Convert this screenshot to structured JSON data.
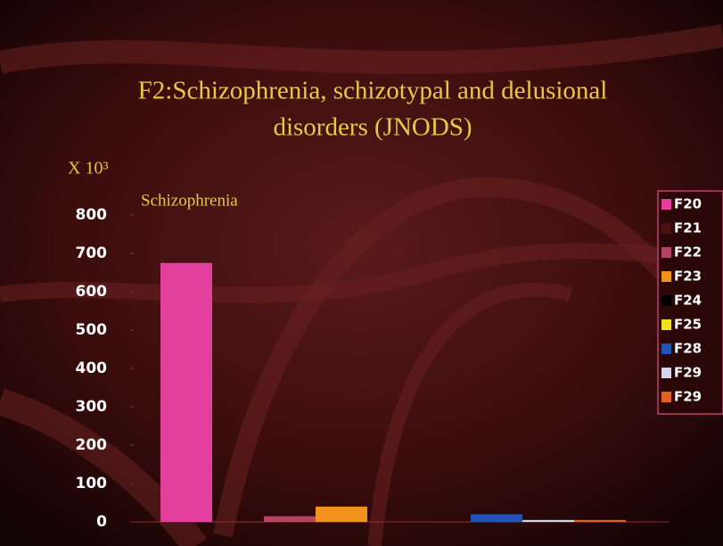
{
  "chart_data": {
    "type": "bar",
    "title": [
      "F2:Schizophrenia, schizotypal and delusional",
      "disorders (JNODS)"
    ],
    "y_axis_label": "X 10³",
    "annotation": "Schizophrenia",
    "series": [
      {
        "name": "F20",
        "color": "#e2409c",
        "values": [
          675
        ]
      },
      {
        "name": "F21",
        "color": "#4a1212",
        "values": [
          0
        ]
      },
      {
        "name": "F22",
        "color": "#b44466",
        "values": [
          15
        ]
      },
      {
        "name": "F23",
        "color": "#f0921c",
        "values": [
          40
        ]
      },
      {
        "name": "F24",
        "color": "#000000",
        "values": [
          0
        ]
      },
      {
        "name": "F25",
        "color": "#f0e020",
        "values": [
          0
        ]
      },
      {
        "name": "F28",
        "color": "#2452b2",
        "values": [
          20
        ]
      },
      {
        "name": "F29",
        "color": "#d4d4ea",
        "values": [
          5
        ]
      },
      {
        "name": "F29",
        "color": "#e26222",
        "values": [
          5
        ]
      }
    ],
    "ylim": [
      0,
      800
    ],
    "yticks": [
      0,
      100,
      200,
      300,
      400,
      500,
      600,
      700,
      800
    ],
    "legend": "right"
  }
}
